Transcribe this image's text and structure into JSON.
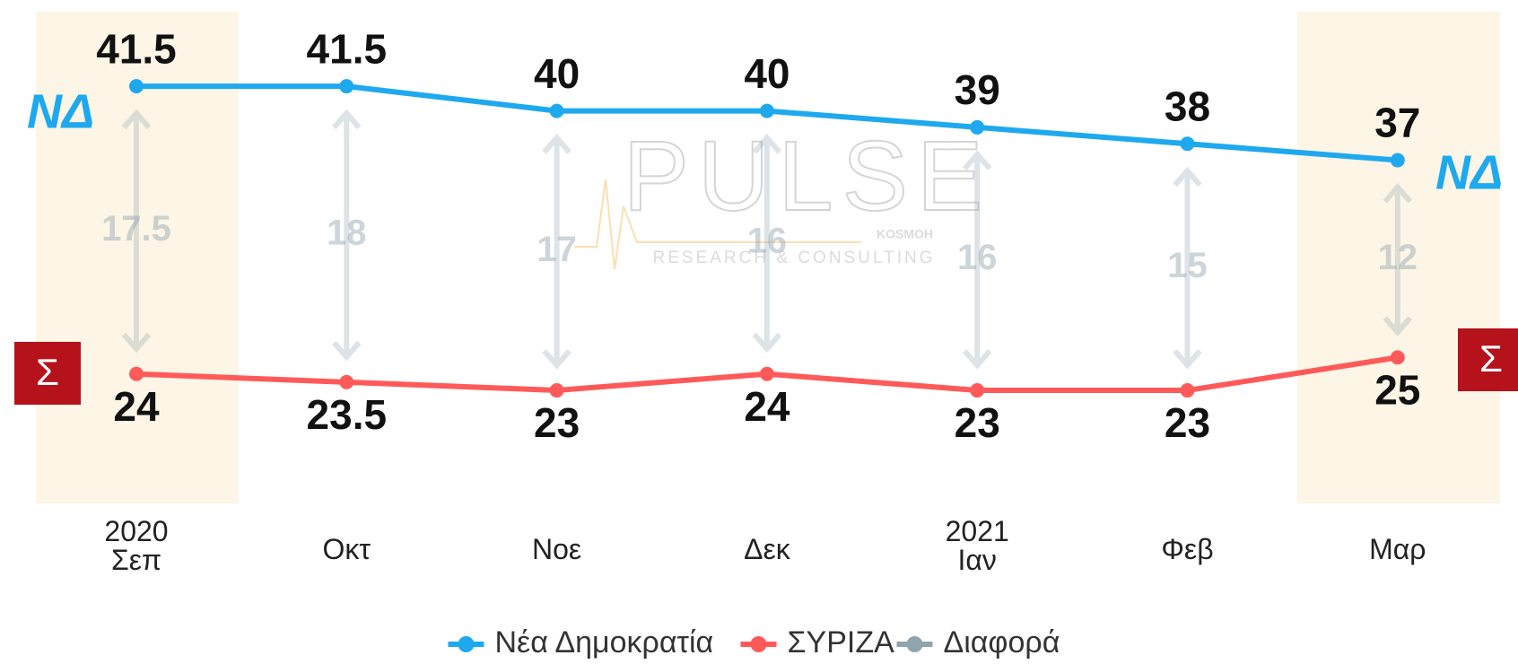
{
  "chart_data": {
    "type": "line",
    "categories": [
      "2020\nΣεπ",
      "Οκτ",
      "Νοε",
      "Δεκ",
      "2021\nΙαν",
      "Φεβ",
      "Μαρ"
    ],
    "series": [
      {
        "name": "Νέα Δημοκρατία",
        "color": "#1ea9ef",
        "values": [
          41.5,
          41.5,
          40,
          40,
          39,
          38,
          37
        ]
      },
      {
        "name": "ΣΥΡΙΖΑ",
        "color": "#ff5a5a",
        "values": [
          24,
          23.5,
          23,
          24,
          23,
          23,
          25
        ]
      },
      {
        "name": "Διαφορά",
        "color": "#90a4ae",
        "values": [
          17.5,
          18,
          17,
          16,
          16,
          15,
          12
        ]
      }
    ],
    "ylim": [
      20,
      45
    ],
    "logos": {
      "nd": "ΝΔ",
      "syriza": "Σ"
    },
    "watermark": {
      "brand": "PULSE",
      "tagline": "RESEARCH & CONSULTING",
      "partner": "KOSMOH"
    }
  }
}
